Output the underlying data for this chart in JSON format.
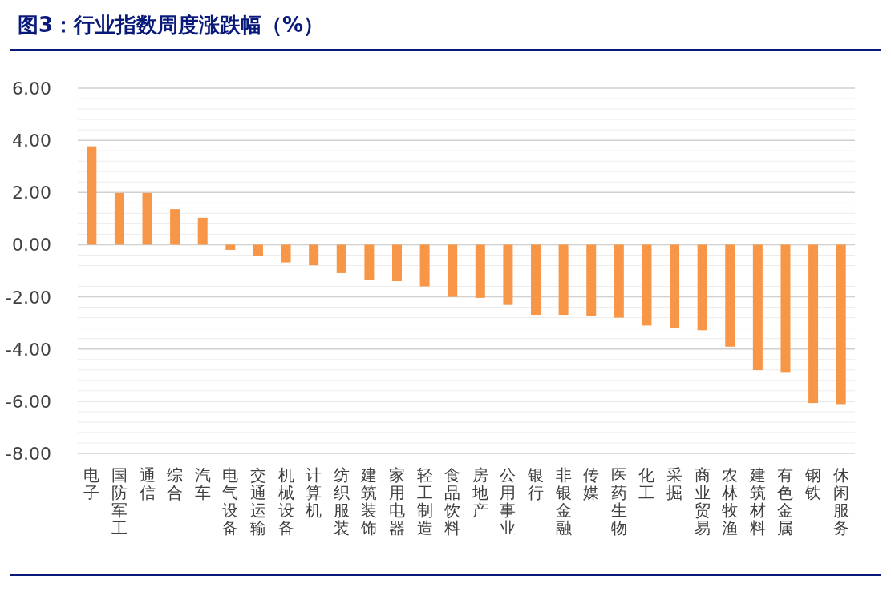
{
  "chart_data": {
    "type": "bar",
    "title": "图3：行业指数周度涨跌幅（%）",
    "categories": [
      "电子",
      "国防军工",
      "通信",
      "综合",
      "汽车",
      "电气设备",
      "交通运输",
      "机械设备",
      "计算机",
      "纺织服装",
      "建筑装饰",
      "家用电器",
      "轻工制造",
      "食品饮料",
      "房地产",
      "公用事业",
      "银行",
      "非银金融",
      "传媒",
      "医药生物",
      "化工",
      "采掘",
      "商业贸易",
      "农林牧渔",
      "建筑材料",
      "有色金属",
      "钢铁",
      "休闲服务"
    ],
    "values": [
      3.77,
      1.98,
      1.98,
      1.36,
      1.03,
      -0.2,
      -0.42,
      -0.68,
      -0.79,
      -1.09,
      -1.36,
      -1.4,
      -1.6,
      -2.0,
      -2.04,
      -2.31,
      -2.69,
      -2.69,
      -2.74,
      -2.8,
      -3.1,
      -3.21,
      -3.28,
      -3.91,
      -4.81,
      -4.91,
      -6.07,
      -6.11
    ],
    "color": "#f79646",
    "ylim": [
      -8,
      6
    ],
    "yticks": [
      {
        "value": -8,
        "label": "-8.00"
      },
      {
        "value": -6,
        "label": "-6.00"
      },
      {
        "value": -4,
        "label": "-4.00"
      },
      {
        "value": -2,
        "label": "-2.00"
      },
      {
        "value": 0,
        "label": "0.00"
      },
      {
        "value": 2,
        "label": "2.00"
      },
      {
        "value": 4,
        "label": "4.00"
      },
      {
        "value": 6,
        "label": "6.00"
      }
    ],
    "grid": "y"
  }
}
